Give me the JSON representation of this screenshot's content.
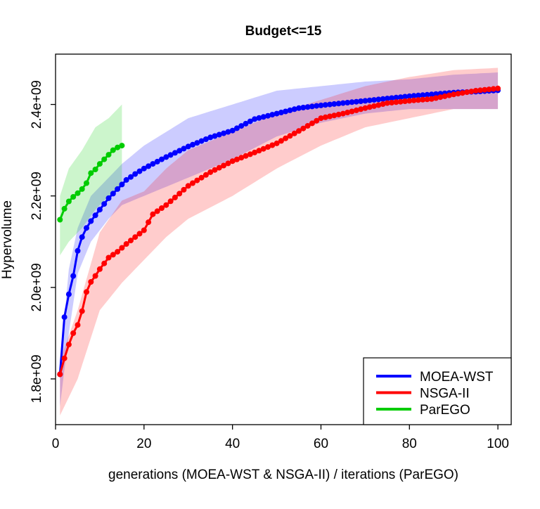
{
  "chart_data": {
    "type": "line",
    "title": "Budget<=15",
    "xlabel": "generations (MOEA-WST & NSGA-II) / iterations (ParEGO)",
    "ylabel": "Hypervolume",
    "xlim": [
      0,
      103
    ],
    "ylim": [
      1700000000.0,
      2510000000.0
    ],
    "x_ticks": [
      0,
      20,
      40,
      60,
      80,
      100
    ],
    "x_tick_labels": [
      "0",
      "20",
      "40",
      "60",
      "80",
      "100"
    ],
    "y_ticks": [
      1800000000.0,
      2000000000.0,
      2200000000.0,
      2400000000.0
    ],
    "y_tick_labels": [
      "1.8e+09",
      "2.0e+09",
      "2.2e+09",
      "2.4e+09"
    ],
    "legend_position": "bottom-right",
    "series": [
      {
        "name": "MOEA-WST",
        "color": "#0000ff",
        "band_color": "#0000ff",
        "x_start": 1,
        "x_end": 100,
        "anchors": [
          [
            1,
            1810000000.0
          ],
          [
            2,
            1935000000.0
          ],
          [
            3,
            1985000000.0
          ],
          [
            4,
            2025000000.0
          ],
          [
            5,
            2080000000.0
          ],
          [
            6,
            2110000000.0
          ],
          [
            7,
            2130000000.0
          ],
          [
            8,
            2145000000.0
          ],
          [
            10,
            2170000000.0
          ],
          [
            12,
            2195000000.0
          ],
          [
            14,
            2215000000.0
          ],
          [
            16,
            2235000000.0
          ],
          [
            18,
            2248000000.0
          ],
          [
            20,
            2260000000.0
          ],
          [
            25,
            2285000000.0
          ],
          [
            30,
            2308000000.0
          ],
          [
            35,
            2328000000.0
          ],
          [
            40,
            2343000000.0
          ],
          [
            45,
            2368000000.0
          ],
          [
            50,
            2380000000.0
          ],
          [
            55,
            2392000000.0
          ],
          [
            60,
            2398000000.0
          ],
          [
            65,
            2403000000.0
          ],
          [
            70,
            2408000000.0
          ],
          [
            75,
            2413000000.0
          ],
          [
            80,
            2418000000.0
          ],
          [
            85,
            2422000000.0
          ],
          [
            90,
            2426000000.0
          ],
          [
            95,
            2428000000.0
          ],
          [
            100,
            2431000000.0
          ]
        ],
        "band": [
          [
            1,
            1740000000.0,
            1830000000.0
          ],
          [
            3,
            1900000000.0,
            2040000000.0
          ],
          [
            5,
            2030000000.0,
            2130000000.0
          ],
          [
            8,
            2100000000.0,
            2200000000.0
          ],
          [
            12,
            2150000000.0,
            2240000000.0
          ],
          [
            15,
            2180000000.0,
            2270000000.0
          ],
          [
            20,
            2200000000.0,
            2310000000.0
          ],
          [
            30,
            2240000000.0,
            2370000000.0
          ],
          [
            40,
            2280000000.0,
            2400000000.0
          ],
          [
            50,
            2330000000.0,
            2430000000.0
          ],
          [
            60,
            2360000000.0,
            2440000000.0
          ],
          [
            70,
            2380000000.0,
            2450000000.0
          ],
          [
            80,
            2390000000.0,
            2455000000.0
          ],
          [
            90,
            2390000000.0,
            2465000000.0
          ],
          [
            100,
            2390000000.0,
            2470000000.0
          ]
        ]
      },
      {
        "name": "NSGA-II",
        "color": "#ff0000",
        "band_color": "#ff0000",
        "x_start": 1,
        "x_end": 100,
        "anchors": [
          [
            1,
            1810000000.0
          ],
          [
            2,
            1845000000.0
          ],
          [
            3,
            1875000000.0
          ],
          [
            4,
            1900000000.0
          ],
          [
            5,
            1918000000.0
          ],
          [
            6,
            1948000000.0
          ],
          [
            7,
            1990000000.0
          ],
          [
            8,
            2012000000.0
          ],
          [
            9,
            2025000000.0
          ],
          [
            10,
            2040000000.0
          ],
          [
            12,
            2065000000.0
          ],
          [
            14,
            2078000000.0
          ],
          [
            16,
            2095000000.0
          ],
          [
            18,
            2110000000.0
          ],
          [
            20,
            2125000000.0
          ],
          [
            22,
            2160000000.0
          ],
          [
            25,
            2180000000.0
          ],
          [
            28,
            2205000000.0
          ],
          [
            30,
            2222000000.0
          ],
          [
            35,
            2252000000.0
          ],
          [
            40,
            2276000000.0
          ],
          [
            45,
            2295000000.0
          ],
          [
            50,
            2315000000.0
          ],
          [
            55,
            2342000000.0
          ],
          [
            60,
            2370000000.0
          ],
          [
            65,
            2380000000.0
          ],
          [
            70,
            2392000000.0
          ],
          [
            75,
            2403000000.0
          ],
          [
            80,
            2408000000.0
          ],
          [
            85,
            2412000000.0
          ],
          [
            90,
            2422000000.0
          ],
          [
            95,
            2430000000.0
          ],
          [
            100,
            2435000000.0
          ]
        ],
        "band": [
          [
            1,
            1720000000.0,
            1840000000.0
          ],
          [
            5,
            1800000000.0,
            1950000000.0
          ],
          [
            10,
            1950000000.0,
            2120000000.0
          ],
          [
            15,
            2010000000.0,
            2190000000.0
          ],
          [
            20,
            2060000000.0,
            2210000000.0
          ],
          [
            25,
            2110000000.0,
            2260000000.0
          ],
          [
            30,
            2150000000.0,
            2300000000.0
          ],
          [
            40,
            2200000000.0,
            2340000000.0
          ],
          [
            50,
            2260000000.0,
            2380000000.0
          ],
          [
            60,
            2310000000.0,
            2410000000.0
          ],
          [
            70,
            2350000000.0,
            2440000000.0
          ],
          [
            80,
            2370000000.0,
            2460000000.0
          ],
          [
            90,
            2390000000.0,
            2475000000.0
          ],
          [
            100,
            2390000000.0,
            2480000000.0
          ]
        ]
      },
      {
        "name": "ParEGO",
        "color": "#00cc00",
        "band_color": "#00cc00",
        "x_start": 1,
        "x_end": 15,
        "anchors": [
          [
            1,
            2148000000.0
          ],
          [
            2,
            2172000000.0
          ],
          [
            3,
            2188000000.0
          ],
          [
            4,
            2198000000.0
          ],
          [
            5,
            2206000000.0
          ],
          [
            6,
            2215000000.0
          ],
          [
            7,
            2228000000.0
          ],
          [
            8,
            2250000000.0
          ],
          [
            9,
            2258000000.0
          ],
          [
            10,
            2270000000.0
          ],
          [
            11,
            2280000000.0
          ],
          [
            12,
            2290000000.0
          ],
          [
            13,
            2300000000.0
          ],
          [
            14,
            2306000000.0
          ],
          [
            15,
            2310000000.0
          ]
        ],
        "band": [
          [
            1,
            2070000000.0,
            2200000000.0
          ],
          [
            3,
            2100000000.0,
            2260000000.0
          ],
          [
            6,
            2130000000.0,
            2300000000.0
          ],
          [
            9,
            2170000000.0,
            2350000000.0
          ],
          [
            12,
            2200000000.0,
            2370000000.0
          ],
          [
            15,
            2220000000.0,
            2400000000.0
          ]
        ]
      }
    ]
  }
}
